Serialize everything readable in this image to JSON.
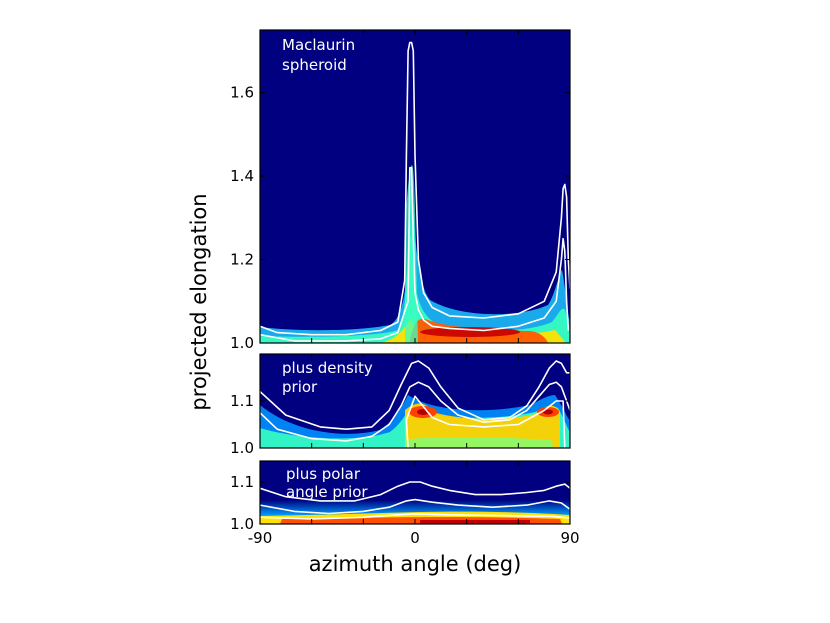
{
  "chart_data": {
    "type": "heatmap",
    "xlabel": "azimuth angle (deg)",
    "ylabel": "projected elongation",
    "xlim": [
      -90,
      90
    ],
    "xticks": [
      -90,
      0,
      90
    ],
    "x_tick_labels": [
      "-90",
      "0",
      "90"
    ],
    "colormap": "jet",
    "background_color": "#000080",
    "panels": [
      {
        "name": "maclaurin",
        "annotation": [
          "Maclaurin",
          "spheroid"
        ],
        "ylim": [
          1.0,
          1.75
        ],
        "yticks": [
          1.0,
          1.2,
          1.4,
          1.6
        ],
        "y_tick_labels": [
          "1.0",
          "1.2",
          "1.4",
          "1.6"
        ],
        "density_peaks": [
          {
            "azimuth": -3,
            "elongation": 1.0,
            "width_deg": 3.5,
            "weight": 0.9
          },
          {
            "azimuth": 35,
            "elongation": 1.0,
            "width_deg": 30,
            "weight": 1.0
          },
          {
            "azimuth": 85,
            "elongation": 1.0,
            "width_deg": 3,
            "weight": 0.5
          }
        ],
        "contours": [
          {
            "level": "outer",
            "azimuth": [
              -90,
              -80,
              -60,
              -40,
              -20,
              -10,
              -6,
              -5,
              -4,
              -3,
              -2,
              -1,
              0,
              2,
              5,
              10,
              20,
              40,
              60,
              75,
              82,
              85,
              86,
              87,
              88,
              89,
              90
            ],
            "elongation": [
              1.04,
              1.025,
              1.02,
              1.02,
              1.03,
              1.05,
              1.15,
              1.45,
              1.7,
              1.72,
              1.72,
              1.7,
              1.45,
              1.2,
              1.12,
              1.085,
              1.065,
              1.06,
              1.07,
              1.1,
              1.17,
              1.3,
              1.37,
              1.38,
              1.35,
              1.2,
              1.13
            ]
          },
          {
            "level": "inner",
            "azimuth": [
              -90,
              -70,
              -40,
              -20,
              -10,
              -4,
              -3,
              -2,
              -1,
              0,
              2,
              5,
              10,
              20,
              40,
              60,
              75,
              82,
              85,
              86,
              87,
              88,
              89
            ],
            "elongation": [
              1.02,
              1.005,
              1.005,
              1.01,
              1.025,
              1.1,
              1.42,
              1.42,
              1.25,
              1.12,
              1.08,
              1.055,
              1.04,
              1.035,
              1.03,
              1.04,
              1.06,
              1.1,
              1.2,
              1.25,
              1.22,
              1.1,
              1.03
            ]
          }
        ]
      },
      {
        "name": "density-prior",
        "annotation": [
          "plus density",
          "prior"
        ],
        "ylim": [
          1.0,
          1.2
        ],
        "yticks": [
          1.0,
          1.1
        ],
        "y_tick_labels": [
          "1.0",
          "1.1"
        ],
        "density_peaks": [
          {
            "azimuth": 5,
            "elongation": 1.083,
            "width_deg": 8,
            "weight": 1.0
          },
          {
            "azimuth": 78,
            "elongation": 1.083,
            "width_deg": 8,
            "weight": 0.9
          },
          {
            "azimuth": 40,
            "elongation": 1.03,
            "width_deg": 45,
            "weight": 0.7
          }
        ],
        "contours": [
          {
            "level": "outer",
            "azimuth": [
              -90,
              -75,
              -55,
              -40,
              -25,
              -15,
              -8,
              -2,
              2,
              8,
              15,
              25,
              40,
              55,
              65,
              72,
              78,
              82,
              85,
              88,
              90
            ],
            "elongation": [
              1.12,
              1.07,
              1.045,
              1.04,
              1.045,
              1.08,
              1.135,
              1.18,
              1.185,
              1.17,
              1.13,
              1.085,
              1.06,
              1.065,
              1.09,
              1.13,
              1.17,
              1.185,
              1.18,
              1.16,
              1.16
            ]
          },
          {
            "level": "inner",
            "azimuth": [
              -90,
              -80,
              -60,
              -40,
              -25,
              -15,
              -8,
              -3,
              2,
              8,
              15,
              25,
              40,
              55,
              65,
              72,
              78,
              82,
              85,
              88,
              90
            ],
            "elongation": [
              1.075,
              1.04,
              1.02,
              1.015,
              1.025,
              1.05,
              1.09,
              1.13,
              1.14,
              1.13,
              1.1,
              1.07,
              1.055,
              1.06,
              1.08,
              1.11,
              1.135,
              1.14,
              1.13,
              1.1,
              1.08
            ]
          },
          {
            "level": "core",
            "azimuth": [
              -4,
              -5,
              0,
              10,
              20,
              40,
              60,
              75,
              82,
              86,
              87
            ],
            "elongation": [
              1.0,
              1.06,
              1.11,
              1.065,
              1.05,
              1.045,
              1.05,
              1.08,
              1.1,
              1.1,
              1.0
            ]
          }
        ]
      },
      {
        "name": "polar-prior",
        "annotation": [
          "plus polar",
          "angle prior"
        ],
        "ylim": [
          1.0,
          1.15
        ],
        "yticks": [
          1.0,
          1.1
        ],
        "y_tick_labels": [
          "1.0",
          "1.1"
        ],
        "density_peaks": [
          {
            "azimuth": 40,
            "elongation": 1.0,
            "width_deg": 45,
            "weight": 1.0
          }
        ],
        "contours": [
          {
            "level": "outer",
            "azimuth": [
              -90,
              -75,
              -55,
              -35,
              -20,
              -10,
              -3,
              3,
              10,
              20,
              35,
              50,
              65,
              75,
              82,
              87,
              90
            ],
            "elongation": [
              1.085,
              1.065,
              1.055,
              1.055,
              1.07,
              1.09,
              1.1,
              1.1,
              1.09,
              1.08,
              1.07,
              1.07,
              1.075,
              1.08,
              1.09,
              1.095,
              1.085
            ]
          },
          {
            "level": "inner",
            "azimuth": [
              -90,
              -70,
              -50,
              -30,
              -15,
              -5,
              0,
              10,
              25,
              45,
              65,
              78,
              85,
              90
            ],
            "elongation": [
              1.045,
              1.03,
              1.025,
              1.03,
              1.04,
              1.055,
              1.058,
              1.052,
              1.045,
              1.04,
              1.045,
              1.055,
              1.05,
              1.035
            ]
          },
          {
            "level": "core",
            "azimuth": [
              -90,
              -60,
              -30,
              -10,
              0,
              20,
              50,
              80,
              90
            ],
            "elongation": [
              1.016,
              1.012,
              1.016,
              1.022,
              1.024,
              1.022,
              1.02,
              1.018,
              1.014
            ]
          }
        ]
      }
    ]
  }
}
